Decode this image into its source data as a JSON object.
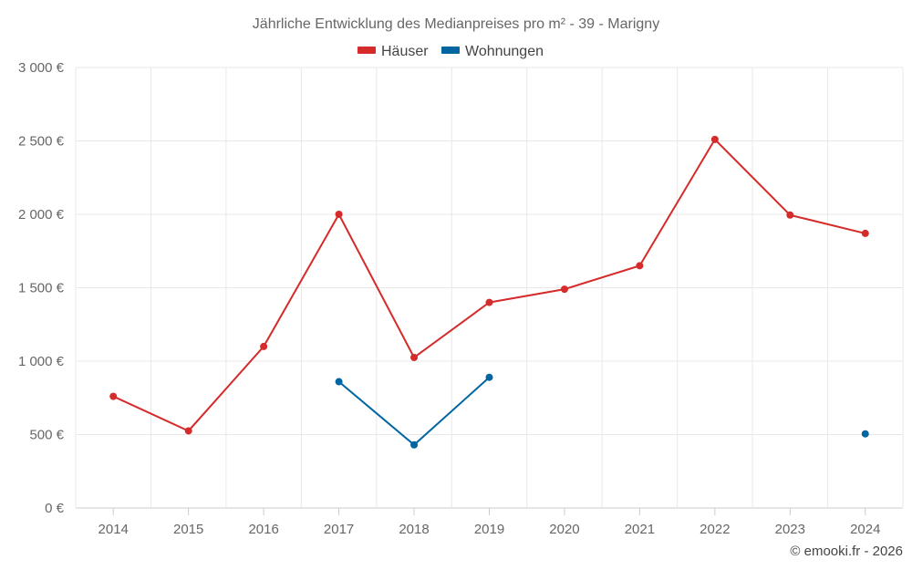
{
  "chart_data": {
    "type": "line",
    "title": "Jährliche Entwicklung des Medianpreises pro m² - 39 - Marigny",
    "categories": [
      "2014",
      "2015",
      "2016",
      "2017",
      "2018",
      "2019",
      "2020",
      "2021",
      "2022",
      "2023",
      "2024"
    ],
    "y_ticks": [
      "0 €",
      "500 €",
      "1 000 €",
      "1 500 €",
      "2 000 €",
      "2 500 €",
      "3 000 €"
    ],
    "y_tick_values": [
      0,
      500,
      1000,
      1500,
      2000,
      2500,
      3000
    ],
    "ylim": [
      0,
      3000
    ],
    "grid": true,
    "legend_position": "top",
    "series": [
      {
        "name": "Häuser",
        "color": "#d52b2b",
        "values": [
          760,
          525,
          1100,
          2000,
          1025,
          1400,
          1490,
          1650,
          2510,
          1995,
          1870
        ]
      },
      {
        "name": "Wohnungen",
        "color": "#0066a1",
        "values": [
          null,
          null,
          null,
          860,
          430,
          890,
          null,
          null,
          null,
          null,
          505
        ]
      }
    ],
    "credit": "© emooki.fr - 2026"
  }
}
